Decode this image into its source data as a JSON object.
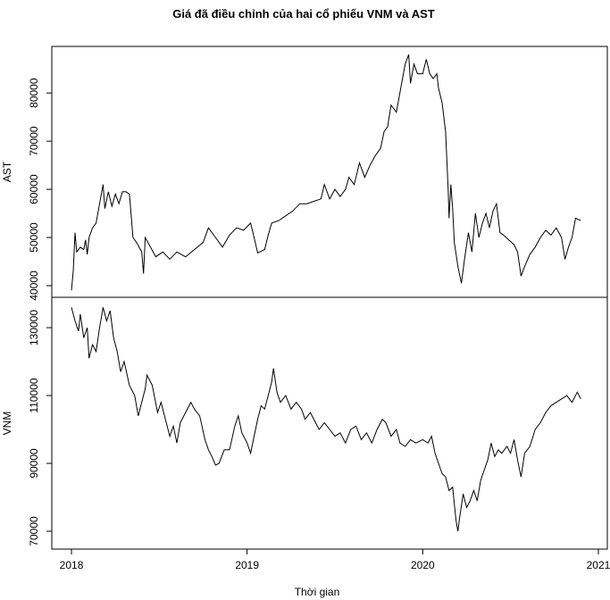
{
  "chart_data": [
    {
      "type": "line",
      "title": "Giá đã điều chỉnh của hai cổ phiếu VNM và AST",
      "ylabel": "AST",
      "color": "#000000",
      "xlim": [
        2017.888,
        2021.051
      ],
      "ylim": [
        37580,
        89670
      ],
      "yticks": [
        40000,
        50000,
        60000,
        70000,
        80000
      ],
      "x": [
        2018.0,
        2018.01,
        2018.02,
        2018.03,
        2018.05,
        2018.07,
        2018.08,
        2018.09,
        2018.1,
        2018.12,
        2018.14,
        2018.16,
        2018.18,
        2018.19,
        2018.21,
        2018.23,
        2018.25,
        2018.27,
        2018.29,
        2018.31,
        2018.33,
        2018.35,
        2018.37,
        2018.4,
        2018.41,
        2018.42,
        2018.45,
        2018.48,
        2018.52,
        2018.56,
        2018.6,
        2018.65,
        2018.7,
        2018.75,
        2018.78,
        2018.82,
        2018.86,
        2018.9,
        2018.94,
        2018.98,
        2019.02,
        2019.04,
        2019.06,
        2019.1,
        2019.12,
        2019.14,
        2019.18,
        2019.22,
        2019.26,
        2019.3,
        2019.34,
        2019.38,
        2019.42,
        2019.44,
        2019.47,
        2019.5,
        2019.53,
        2019.56,
        2019.58,
        2019.61,
        2019.64,
        2019.67,
        2019.7,
        2019.73,
        2019.76,
        2019.78,
        2019.8,
        2019.82,
        2019.85,
        2019.88,
        2019.9,
        2019.92,
        2019.93,
        2019.95,
        2019.97,
        2020.0,
        2020.02,
        2020.04,
        2020.06,
        2020.08,
        2020.09,
        2020.11,
        2020.13,
        2020.145,
        2020.15,
        2020.16,
        2020.17,
        2020.18,
        2020.2,
        2020.22,
        2020.24,
        2020.26,
        2020.28,
        2020.3,
        2020.32,
        2020.34,
        2020.36,
        2020.38,
        2020.4,
        2020.42,
        2020.44,
        2020.46,
        2020.49,
        2020.52,
        2020.54,
        2020.56,
        2020.58,
        2020.61,
        2020.64,
        2020.67,
        2020.7,
        2020.73,
        2020.76,
        2020.79,
        2020.81,
        2020.83,
        2020.85,
        2020.87,
        2020.9
      ],
      "values": [
        39000,
        43000,
        51000,
        47000,
        48000,
        47500,
        49500,
        46500,
        50000,
        52000,
        53000,
        57000,
        61000,
        56000,
        59500,
        56500,
        59000,
        57000,
        59500,
        59500,
        59000,
        50000,
        49000,
        47000,
        42500,
        50000,
        48000,
        46000,
        47000,
        45500,
        47000,
        46000,
        47500,
        49000,
        52000,
        50000,
        48000,
        50500,
        52000,
        51500,
        53000,
        50000,
        46800,
        47500,
        50500,
        53000,
        53500,
        54500,
        55500,
        57000,
        57000,
        57500,
        58000,
        61000,
        58000,
        60000,
        58500,
        60000,
        62500,
        61000,
        65500,
        62500,
        65000,
        67000,
        68500,
        72000,
        73000,
        77500,
        76000,
        82000,
        86000,
        88000,
        82000,
        86000,
        84000,
        84000,
        87000,
        84000,
        83000,
        84000,
        81000,
        78000,
        72000,
        60000,
        54000,
        61000,
        56000,
        49000,
        44000,
        40500,
        46000,
        51000,
        47000,
        55000,
        50000,
        53000,
        55000,
        52000,
        55500,
        57000,
        51000,
        50500,
        49500,
        48500,
        47000,
        42000,
        44000,
        46500,
        48000,
        50000,
        51500,
        50500,
        52000,
        50000,
        45500,
        48000,
        50000,
        54000,
        53500
      ]
    },
    {
      "type": "line",
      "ylabel": "VNM",
      "xlabel": "Thời gian",
      "color": "#000000",
      "xlim": [
        2017.888,
        2021.051
      ],
      "ylim": [
        64737,
        138947
      ],
      "yticks": [
        70000,
        90000,
        110000,
        130000
      ],
      "xticks": [
        2018,
        2019,
        2020,
        2021
      ],
      "x": [
        2018.0,
        2018.02,
        2018.04,
        2018.05,
        2018.07,
        2018.09,
        2018.1,
        2018.12,
        2018.14,
        2018.16,
        2018.18,
        2018.2,
        2018.22,
        2018.24,
        2018.26,
        2018.28,
        2018.3,
        2018.33,
        2018.36,
        2018.38,
        2018.4,
        2018.42,
        2018.43,
        2018.46,
        2018.49,
        2018.51,
        2018.53,
        2018.56,
        2018.58,
        2018.6,
        2018.62,
        2018.65,
        2018.68,
        2018.7,
        2018.73,
        2018.76,
        2018.78,
        2018.8,
        2018.82,
        2018.84,
        2018.87,
        2018.9,
        2018.93,
        2018.95,
        2018.97,
        2019.0,
        2019.02,
        2019.04,
        2019.06,
        2019.08,
        2019.1,
        2019.12,
        2019.14,
        2019.15,
        2019.17,
        2019.19,
        2019.22,
        2019.25,
        2019.28,
        2019.31,
        2019.33,
        2019.36,
        2019.38,
        2019.41,
        2019.44,
        2019.47,
        2019.5,
        2019.53,
        2019.56,
        2019.59,
        2019.62,
        2019.65,
        2019.68,
        2019.71,
        2019.74,
        2019.77,
        2019.79,
        2019.82,
        2019.85,
        2019.87,
        2019.9,
        2019.93,
        2019.96,
        2020.0,
        2020.03,
        2020.05,
        2020.07,
        2020.09,
        2020.11,
        2020.13,
        2020.15,
        2020.17,
        2020.18,
        2020.19,
        2020.2,
        2020.21,
        2020.23,
        2020.25,
        2020.27,
        2020.29,
        2020.31,
        2020.33,
        2020.35,
        2020.37,
        2020.39,
        2020.41,
        2020.43,
        2020.45,
        2020.48,
        2020.5,
        2020.52,
        2020.54,
        2020.56,
        2020.58,
        2020.61,
        2020.64,
        2020.67,
        2020.7,
        2020.73,
        2020.76,
        2020.79,
        2020.82,
        2020.85,
        2020.88,
        2020.9
      ],
      "values": [
        136000,
        132000,
        129000,
        134000,
        127000,
        130000,
        121000,
        125000,
        123000,
        130000,
        136000,
        132000,
        135000,
        127000,
        123000,
        117000,
        120000,
        113000,
        110000,
        104000,
        108000,
        112000,
        116000,
        113000,
        105000,
        108000,
        104000,
        98000,
        101000,
        96000,
        102000,
        105000,
        108000,
        106000,
        104000,
        97000,
        94000,
        92000,
        89500,
        90000,
        94000,
        94000,
        101000,
        104000,
        99000,
        96000,
        93000,
        98000,
        103000,
        107000,
        106000,
        110000,
        114000,
        118000,
        111000,
        108000,
        110000,
        106000,
        108000,
        106000,
        103000,
        105000,
        103000,
        100000,
        102000,
        100000,
        98000,
        99000,
        96000,
        100000,
        101000,
        97000,
        99000,
        96000,
        100000,
        103000,
        102000,
        98000,
        100000,
        96000,
        95000,
        97000,
        96000,
        97000,
        96000,
        98000,
        93000,
        90000,
        87000,
        86000,
        82000,
        83000,
        78000,
        73000,
        70000,
        74000,
        81000,
        77000,
        79000,
        82000,
        79000,
        85000,
        88000,
        91000,
        96000,
        92000,
        94000,
        93000,
        95000,
        93000,
        97000,
        91000,
        86000,
        93000,
        95000,
        100000,
        102000,
        105000,
        107000,
        108000,
        109000,
        110000,
        108000,
        111000,
        109000
      ]
    }
  ]
}
